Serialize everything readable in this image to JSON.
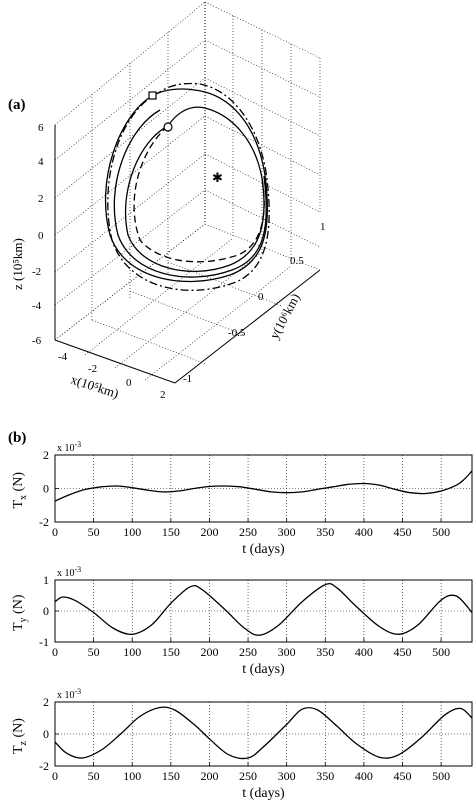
{
  "panel_a_label": "(a)",
  "panel_b_label": "(b)",
  "chart_data": [
    {
      "type": "line3d",
      "panel": "(a)",
      "xlabel": "x(10⁵km)",
      "ylabel": "y(10⁶km)",
      "zlabel": "z (10⁵km)",
      "xticks": [
        "-4",
        "-2",
        "0",
        "2"
      ],
      "yticks": [
        "-1",
        "-0.5",
        "0",
        "0.5",
        "1"
      ],
      "zticks": [
        "-6",
        "-4",
        "-2",
        "0",
        "2",
        "4",
        "6"
      ],
      "xlim": [
        -5,
        2
      ],
      "ylim": [
        -1,
        1
      ],
      "zlim": [
        -6,
        6
      ],
      "grid": true,
      "markers": [
        "square",
        "circle",
        "star"
      ],
      "line_styles": [
        "solid",
        "dashed",
        "dash-dot"
      ]
    },
    {
      "type": "line",
      "panel": "(b)",
      "ylabel_main": "T",
      "ylabel_sub": "x",
      "ylabel_unit": " (N)",
      "xlabel": "t (days)",
      "exponent": "x 10",
      "exponent_power": "-3",
      "xlim": [
        0,
        540
      ],
      "ylim": [
        -2,
        2
      ],
      "xticks": [
        0,
        50,
        100,
        150,
        200,
        250,
        300,
        350,
        400,
        450,
        500
      ],
      "yticks": [
        -2,
        0,
        2
      ],
      "grid": true,
      "x": [
        0,
        20,
        40,
        60,
        80,
        100,
        120,
        140,
        160,
        180,
        200,
        220,
        240,
        260,
        280,
        300,
        320,
        340,
        360,
        380,
        400,
        420,
        440,
        460,
        480,
        500,
        520,
        530,
        540
      ],
      "y": [
        -0.75,
        -0.35,
        -0.05,
        0.1,
        0.15,
        0.05,
        -0.1,
        -0.2,
        -0.15,
        0.0,
        0.12,
        0.15,
        0.1,
        -0.05,
        -0.2,
        -0.25,
        -0.2,
        -0.05,
        0.1,
        0.25,
        0.3,
        0.2,
        -0.05,
        -0.25,
        -0.3,
        -0.15,
        0.2,
        0.55,
        1.05
      ]
    },
    {
      "type": "line",
      "panel": "(b)",
      "ylabel_main": "T",
      "ylabel_sub": "y",
      "ylabel_unit": " (N)",
      "xlabel": "t (days)",
      "exponent": "x 10",
      "exponent_power": "-3",
      "xlim": [
        0,
        540
      ],
      "ylim": [
        -1,
        1
      ],
      "xticks": [
        0,
        50,
        100,
        150,
        200,
        250,
        300,
        350,
        400,
        450,
        500
      ],
      "yticks": [
        -1,
        0,
        1
      ],
      "grid": true,
      "x": [
        0,
        10,
        25,
        50,
        75,
        100,
        125,
        150,
        175,
        190,
        220,
        245,
        265,
        290,
        320,
        350,
        365,
        390,
        420,
        445,
        470,
        500,
        520,
        540
      ],
      "y": [
        0.3,
        0.45,
        0.35,
        -0.05,
        -0.55,
        -0.75,
        -0.45,
        0.25,
        0.78,
        0.7,
        0.05,
        -0.55,
        -0.78,
        -0.45,
        0.3,
        0.85,
        0.75,
        0.15,
        -0.5,
        -0.75,
        -0.45,
        0.35,
        0.48,
        -0.05
      ]
    },
    {
      "type": "line",
      "panel": "(b)",
      "ylabel_main": "T",
      "ylabel_sub": "z",
      "ylabel_unit": " (N)",
      "xlabel": "t (days)",
      "exponent": "x 10",
      "exponent_power": "-3",
      "xlim": [
        0,
        540
      ],
      "ylim": [
        -2,
        2
      ],
      "xticks": [
        0,
        50,
        100,
        150,
        200,
        250,
        300,
        350,
        400,
        450,
        500
      ],
      "yticks": [
        -2,
        0,
        2
      ],
      "grid": true,
      "x": [
        0,
        15,
        35,
        60,
        85,
        110,
        135,
        155,
        180,
        200,
        225,
        250,
        270,
        300,
        320,
        340,
        365,
        390,
        420,
        445,
        475,
        505,
        525,
        540
      ],
      "y": [
        -0.5,
        -1.2,
        -1.5,
        -1.0,
        0.0,
        1.1,
        1.65,
        1.5,
        0.6,
        -0.3,
        -1.3,
        -1.5,
        -0.8,
        0.6,
        1.55,
        1.5,
        0.5,
        -0.6,
        -1.45,
        -1.3,
        -0.2,
        1.2,
        1.6,
        1.0
      ]
    }
  ]
}
